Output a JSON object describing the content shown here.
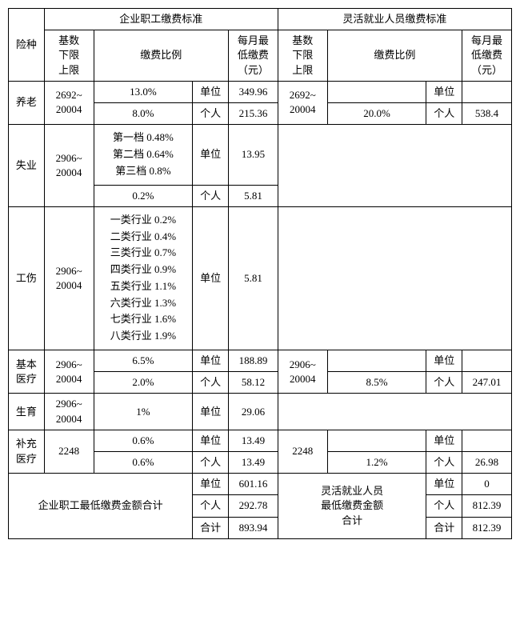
{
  "headers": {
    "insurance_type": "险种",
    "enterprise_standard": "企业职工缴费标准",
    "flexible_standard": "灵活就业人员缴费标准",
    "base_range": "基数\n下限\n上限",
    "rate": "缴费比例",
    "monthly_min": "每月最\n低缴费\n（元）",
    "payer_unit": "单位",
    "payer_person": "个人",
    "payer_total": "合计"
  },
  "rows": {
    "pension": {
      "label": "养老",
      "ent_base": "2692~\n20004",
      "ent_unit_rate": "13.0%",
      "ent_unit_amt": "349.96",
      "ent_person_rate": "8.0%",
      "ent_person_amt": "215.36",
      "flex_base": "2692~\n20004",
      "flex_person_rate": "20.0%",
      "flex_person_amt": "538.4"
    },
    "unemployment": {
      "label": "失业",
      "ent_base": "2906~\n20004",
      "ent_unit_rate": "第一档 0.48%\n第二档 0.64%\n第三档 0.8%",
      "ent_unit_amt": "13.95",
      "ent_person_rate": "0.2%",
      "ent_person_amt": "5.81"
    },
    "injury": {
      "label": "工伤",
      "ent_base": "2906~\n20004",
      "ent_unit_rate": "一类行业 0.2%\n二类行业 0.4%\n三类行业 0.7%\n四类行业 0.9%\n五类行业 1.1%\n六类行业 1.3%\n七类行业 1.6%\n八类行业 1.9%",
      "ent_unit_amt": "5.81"
    },
    "medical": {
      "label": "基本\n医疗",
      "ent_base": "2906~\n20004",
      "ent_unit_rate": "6.5%",
      "ent_unit_amt": "188.89",
      "ent_person_rate": "2.0%",
      "ent_person_amt": "58.12",
      "flex_base": "2906~\n20004",
      "flex_person_rate": "8.5%",
      "flex_person_amt": "247.01"
    },
    "maternity": {
      "label": "生育",
      "ent_base": "2906~\n20004",
      "ent_unit_rate": "1%",
      "ent_unit_amt": "29.06"
    },
    "supp_medical": {
      "label": "补充\n医疗",
      "ent_base": "2248",
      "ent_unit_rate": "0.6%",
      "ent_unit_amt": "13.49",
      "ent_person_rate": "0.6%",
      "ent_person_amt": "13.49",
      "flex_base": "2248",
      "flex_person_rate": "1.2%",
      "flex_person_amt": "26.98"
    }
  },
  "totals": {
    "ent_label": "企业职工最低缴费金额合计",
    "flex_label": "灵活就业人员\n最低缴费金额\n合计",
    "ent_unit": "601.16",
    "ent_person": "292.78",
    "ent_total": "893.94",
    "flex_unit": "0",
    "flex_person": "812.39",
    "flex_total": "812.39"
  }
}
